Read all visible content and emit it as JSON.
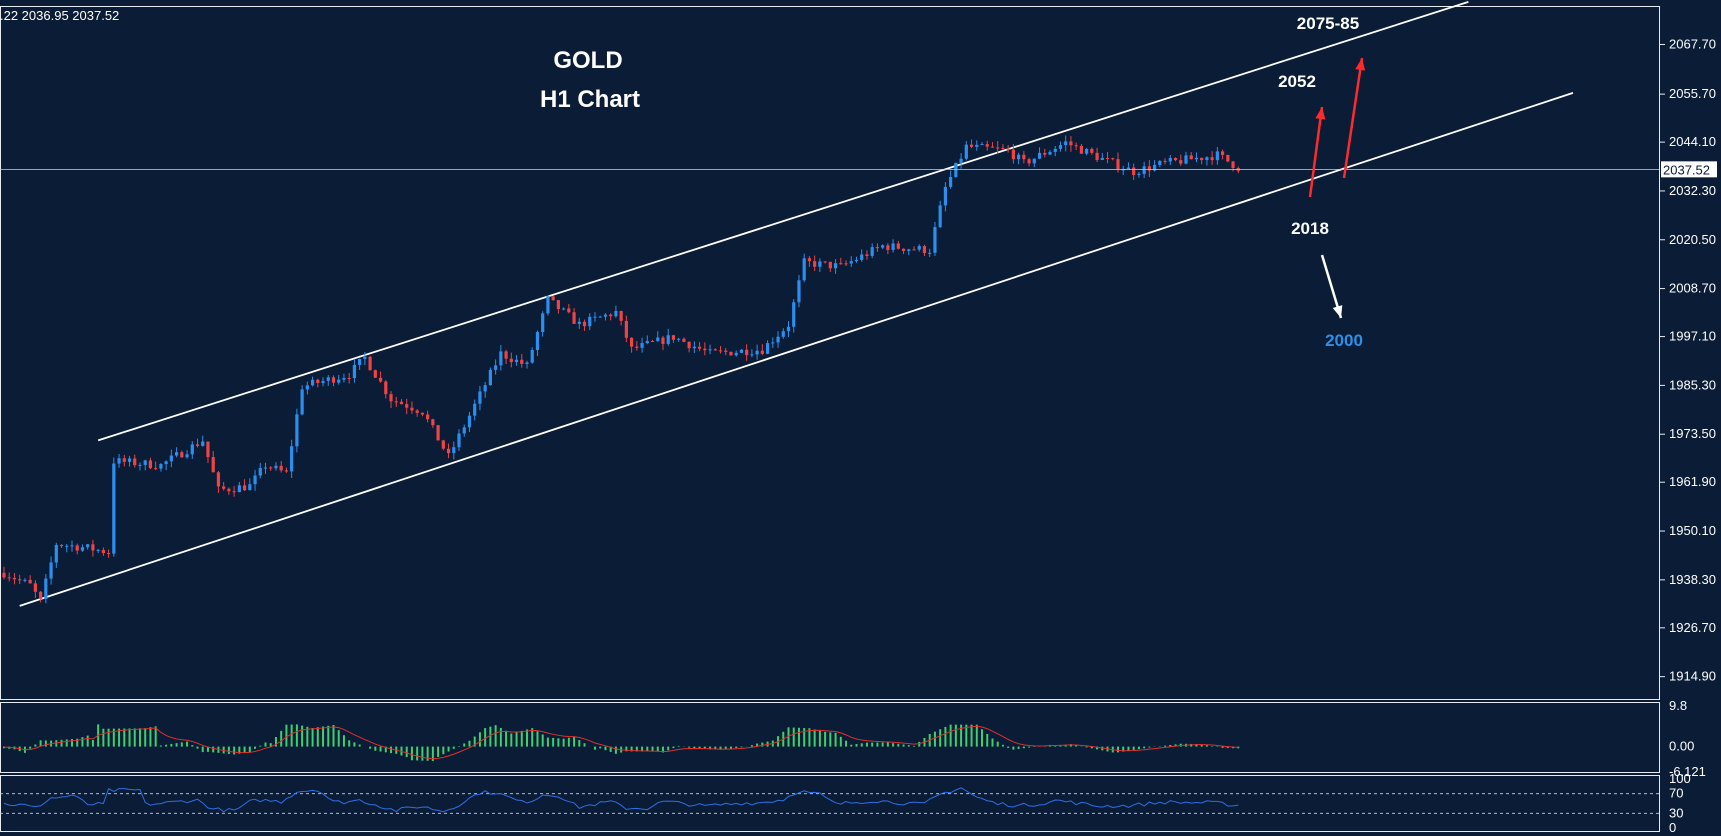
{
  "ohlc_text": ".22 2036.95 2037.52",
  "chart_data": {
    "type": "candlestick",
    "title": "GOLD",
    "subtitle": "H1 Chart",
    "instrument": "GOLD",
    "timeframe": "H1",
    "current_price": 2037.52,
    "current_price_label": "2037.52",
    "ylim": [
      1909.5,
      2077.0
    ],
    "yticks": [
      "2067.70",
      "2055.70",
      "2044.10",
      "2032.30",
      "2020.50",
      "2008.70",
      "1997.10",
      "1985.30",
      "1973.50",
      "1961.90",
      "1950.10",
      "1938.30",
      "1926.70",
      "1914.90"
    ],
    "ytick_values": [
      2067.7,
      2055.7,
      2044.1,
      2032.3,
      2020.5,
      2008.7,
      1997.1,
      1985.3,
      1973.5,
      1961.9,
      1950.1,
      1938.3,
      1926.7,
      1914.9
    ],
    "candle_count": 290,
    "price_path": [
      [
        0,
        1940
      ],
      [
        5,
        1937
      ],
      [
        7,
        1933
      ],
      [
        10,
        1947
      ],
      [
        16,
        1946
      ],
      [
        20,
        1945
      ],
      [
        21,
        1967
      ],
      [
        30,
        1966
      ],
      [
        38,
        1972
      ],
      [
        41,
        1960
      ],
      [
        47,
        1961
      ],
      [
        50,
        1966
      ],
      [
        54,
        1964
      ],
      [
        57,
        1985
      ],
      [
        66,
        1988
      ],
      [
        69,
        1992
      ],
      [
        74,
        1982
      ],
      [
        80,
        1979
      ],
      [
        85,
        1968
      ],
      [
        95,
        1993
      ],
      [
        100,
        1990
      ],
      [
        104,
        2006
      ],
      [
        110,
        2000
      ],
      [
        117,
        2003
      ],
      [
        120,
        1994
      ],
      [
        128,
        1997
      ],
      [
        135,
        1993
      ],
      [
        145,
        1994
      ],
      [
        150,
        2000
      ],
      [
        153,
        2015
      ],
      [
        160,
        2014
      ],
      [
        168,
        2019
      ],
      [
        177,
        2018
      ],
      [
        180,
        2033
      ],
      [
        184,
        2043
      ],
      [
        192,
        2042
      ],
      [
        195,
        2039
      ],
      [
        203,
        2044
      ],
      [
        210,
        2040
      ],
      [
        216,
        2037
      ],
      [
        222,
        2039
      ],
      [
        232,
        2041
      ],
      [
        236,
        2038
      ]
    ],
    "bull_color": "#2b8fef",
    "bear_color": "#f04343",
    "channel": {
      "upper": [
        [
          18,
          1972
        ],
        [
          280,
          2078
        ]
      ],
      "lower": [
        [
          3,
          1932
        ],
        [
          300,
          2056
        ]
      ]
    },
    "annotations": [
      {
        "text": "2075-85",
        "price": 2075,
        "color": "#ffffff"
      },
      {
        "text": "2052",
        "price": 2052,
        "color": "#ffffff"
      },
      {
        "text": "2018",
        "price": 2018,
        "color": "#ffffff"
      },
      {
        "text": "2000",
        "price": 2000,
        "color": "#2f8fe6"
      }
    ],
    "arrows": [
      {
        "direction": "up",
        "color": "#ff2b2b",
        "target": 2052
      },
      {
        "direction": "up",
        "color": "#ff2b2b",
        "target": 2075
      },
      {
        "direction": "down",
        "color": "#ffffff",
        "target": 2000
      }
    ],
    "macd": {
      "yticks": [
        "9.8",
        "0.00",
        "-6.121"
      ],
      "ytick_values": [
        9.8,
        0.0,
        -6.121
      ],
      "ylim": [
        -6.121,
        10.5
      ],
      "histogram_color": "#3ecf6e",
      "signal_color": "#e0302e"
    },
    "rsi": {
      "yticks": [
        "100",
        "70",
        "30",
        "0"
      ],
      "ytick_values": [
        100,
        70,
        30,
        0
      ],
      "levels": [
        70,
        30
      ],
      "line_color": "#2f6fe6"
    }
  }
}
